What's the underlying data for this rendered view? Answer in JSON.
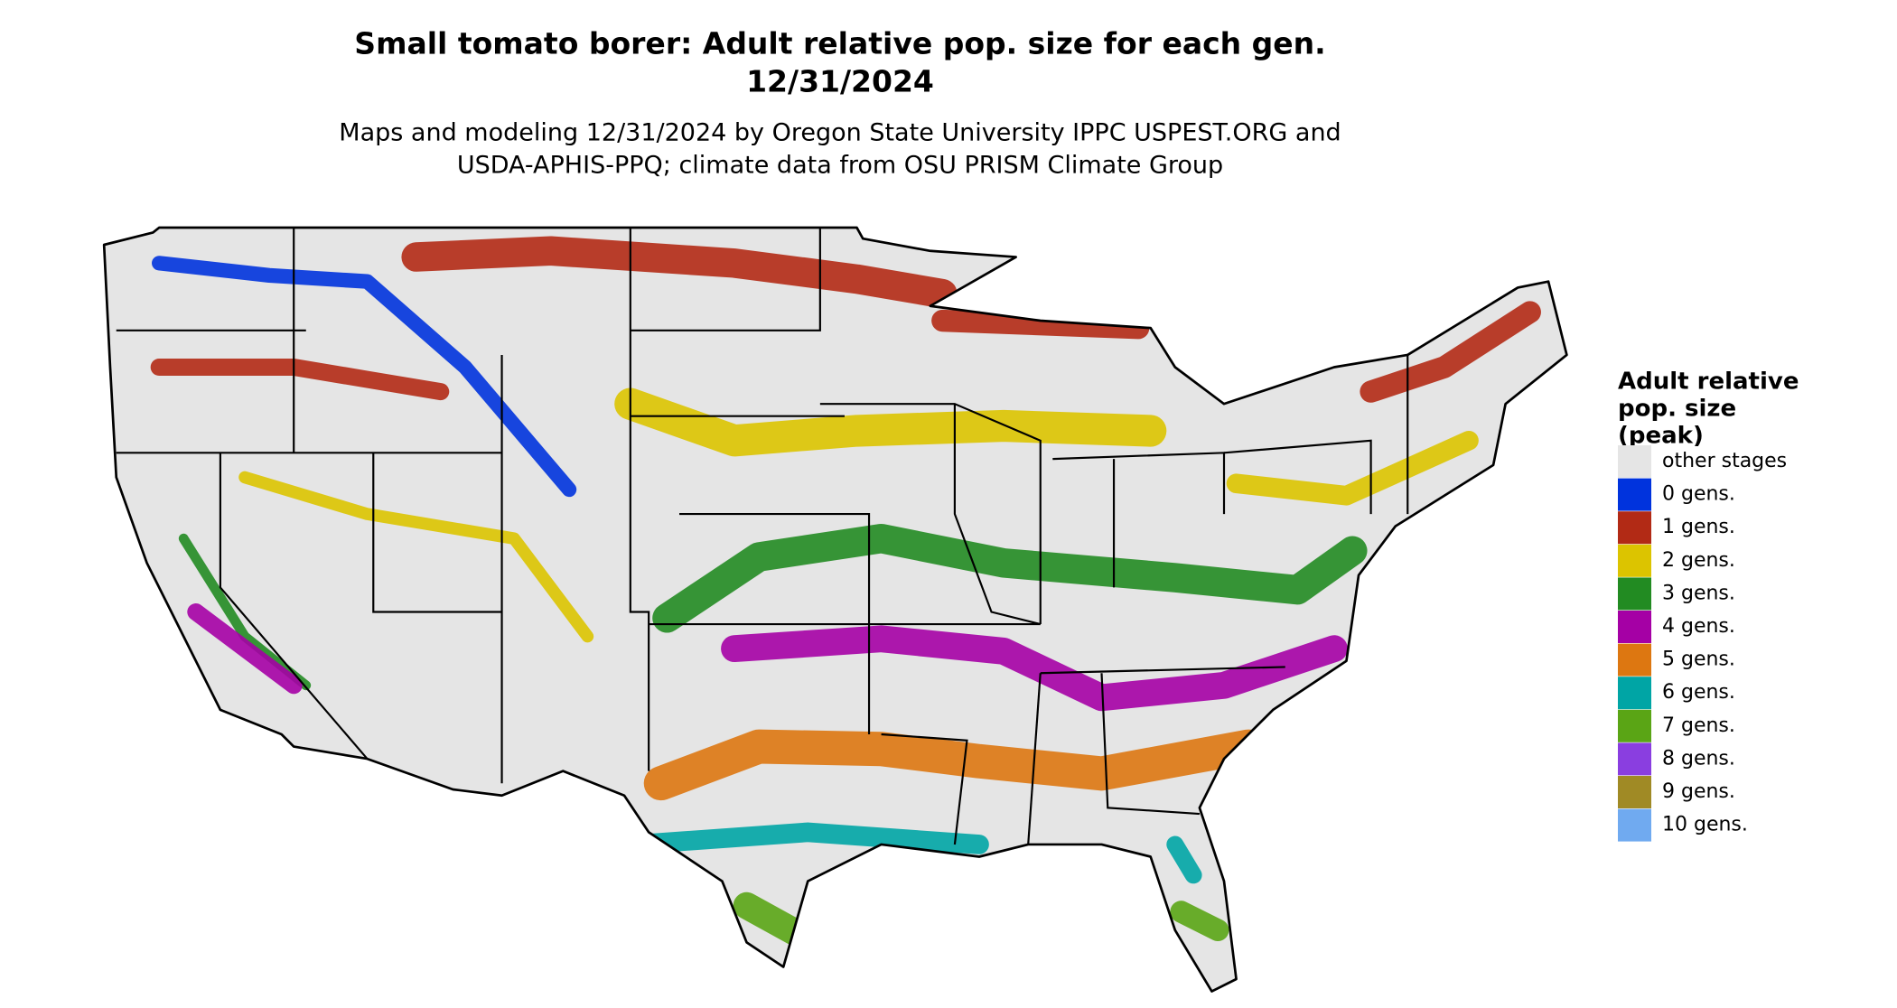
{
  "header": {
    "title": "Small tomato borer: Adult relative pop. size for each gen.",
    "date": "12/31/2024",
    "subtitle": [
      "Maps and modeling 12/31/2024 by Oregon State University IPPC USPEST.ORG and",
      "USDA-APHIS-PPQ; climate data from OSU PRISM Climate Group"
    ]
  },
  "legend": {
    "title": [
      "Adult relative",
      "pop. size",
      "(peak)"
    ],
    "items": [
      {
        "label": "other stages",
        "color": "#e5e5e5"
      },
      {
        "label": "0 gens.",
        "color": "#0033dd"
      },
      {
        "label": "1 gens.",
        "color": "#b22a15"
      },
      {
        "label": "2 gens.",
        "color": "#dcc400"
      },
      {
        "label": "3 gens.",
        "color": "#228b22"
      },
      {
        "label": "4 gens.",
        "color": "#a500a5"
      },
      {
        "label": "5 gens.",
        "color": "#dd7711"
      },
      {
        "label": "6 gens.",
        "color": "#00a5a5"
      },
      {
        "label": "7 gens.",
        "color": "#5aa515"
      },
      {
        "label": "8 gens.",
        "color": "#8a3ee0"
      },
      {
        "label": "9 gens.",
        "color": "#a08a25"
      },
      {
        "label": "10 gens.",
        "color": "#70aaf0"
      }
    ]
  }
}
